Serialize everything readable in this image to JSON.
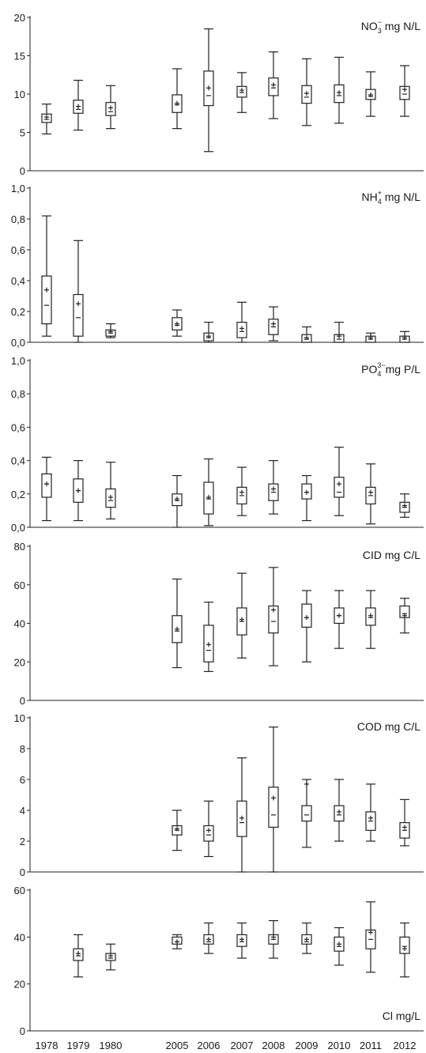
{
  "x_years": [
    "1978",
    "1979",
    "1980",
    "2005",
    "2006",
    "2007",
    "2008",
    "2009",
    "2010",
    "2011",
    "2012"
  ],
  "chart_data": [
    {
      "type": "box",
      "title_main": "NO",
      "title_sub": "3",
      "title_sup": "−",
      "title_rest": " mg N/L",
      "ylim": [
        0,
        20
      ],
      "yticks": [
        0,
        5,
        10,
        15,
        20
      ],
      "yticklabels": [
        "0",
        "5",
        "10",
        "15",
        "20"
      ],
      "boxes": [
        {
          "year": "1978",
          "min": 4.8,
          "q1": 6.3,
          "median": 6.7,
          "q3": 7.4,
          "max": 8.7,
          "mean": 7.0
        },
        {
          "year": "1979",
          "min": 5.3,
          "q1": 7.5,
          "median": 8.0,
          "q3": 9.2,
          "max": 11.8,
          "mean": 8.4
        },
        {
          "year": "1980",
          "min": 5.5,
          "q1": 7.2,
          "median": 7.7,
          "q3": 8.9,
          "max": 11.1,
          "mean": 8.2
        },
        {
          "year": "2005",
          "min": 5.5,
          "q1": 7.6,
          "median": 8.6,
          "q3": 9.9,
          "max": 13.3,
          "mean": 8.8
        },
        {
          "year": "2006",
          "min": 2.5,
          "q1": 8.5,
          "median": 9.8,
          "q3": 13.0,
          "max": 18.5,
          "mean": 10.8
        },
        {
          "year": "2007",
          "min": 7.6,
          "q1": 9.6,
          "median": 10.2,
          "q3": 11.0,
          "max": 12.8,
          "mean": 10.5
        },
        {
          "year": "2008",
          "min": 6.8,
          "q1": 9.8,
          "median": 10.8,
          "q3": 12.1,
          "max": 15.5,
          "mean": 11.2
        },
        {
          "year": "2009",
          "min": 5.9,
          "q1": 8.8,
          "median": 9.6,
          "q3": 11.1,
          "max": 14.6,
          "mean": 10.1
        },
        {
          "year": "2010",
          "min": 6.2,
          "q1": 8.9,
          "median": 9.8,
          "q3": 11.2,
          "max": 14.8,
          "mean": 10.2
        },
        {
          "year": "2011",
          "min": 7.1,
          "q1": 9.3,
          "median": 9.7,
          "q3": 10.6,
          "max": 12.9,
          "mean": 9.9
        },
        {
          "year": "2012",
          "min": 7.1,
          "q1": 9.3,
          "median": 10.0,
          "q3": 11.0,
          "max": 13.7,
          "mean": 10.6
        }
      ]
    },
    {
      "type": "box",
      "title_main": "NH",
      "title_sub": "4",
      "title_sup": "+",
      "title_rest": " mg N/L",
      "ylim": [
        0,
        1
      ],
      "yticks": [
        0,
        0.2,
        0.4,
        0.6,
        0.8,
        1.0
      ],
      "yticklabels": [
        "0,0",
        "0,2",
        "0,4",
        "0,6",
        "0,8",
        "1,0"
      ],
      "boxes": [
        {
          "year": "1978",
          "min": 0.04,
          "q1": 0.12,
          "median": 0.24,
          "q3": 0.43,
          "max": 0.82,
          "mean": 0.34
        },
        {
          "year": "1979",
          "min": 0.0,
          "q1": 0.04,
          "median": 0.16,
          "q3": 0.31,
          "max": 0.66,
          "mean": 0.25
        },
        {
          "year": "1980",
          "min": 0.03,
          "q1": 0.04,
          "median": 0.06,
          "q3": 0.08,
          "max": 0.12,
          "mean": 0.07
        },
        {
          "year": "2005",
          "min": 0.04,
          "q1": 0.08,
          "median": 0.11,
          "q3": 0.16,
          "max": 0.21,
          "mean": 0.12
        },
        {
          "year": "2006",
          "min": 0.0,
          "q1": 0.01,
          "median": 0.03,
          "q3": 0.06,
          "max": 0.13,
          "mean": 0.04
        },
        {
          "year": "2007",
          "min": 0.0,
          "q1": 0.03,
          "median": 0.07,
          "q3": 0.13,
          "max": 0.26,
          "mean": 0.09
        },
        {
          "year": "2008",
          "min": 0.01,
          "q1": 0.05,
          "median": 0.1,
          "q3": 0.15,
          "max": 0.23,
          "mean": 0.12
        },
        {
          "year": "2009",
          "min": 0.0,
          "q1": 0.0,
          "median": 0.02,
          "q3": 0.05,
          "max": 0.1,
          "mean": 0.03
        },
        {
          "year": "2010",
          "min": 0.0,
          "q1": 0.0,
          "median": 0.02,
          "q3": 0.05,
          "max": 0.13,
          "mean": 0.04
        },
        {
          "year": "2011",
          "min": 0.0,
          "q1": 0.0,
          "median": 0.02,
          "q3": 0.04,
          "max": 0.06,
          "mean": 0.03
        },
        {
          "year": "2012",
          "min": 0.0,
          "q1": 0.0,
          "median": 0.02,
          "q3": 0.04,
          "max": 0.07,
          "mean": 0.03
        }
      ]
    },
    {
      "type": "box",
      "title_main": "PO",
      "title_sub": "4",
      "title_sup": "3−",
      "title_rest": "mg P/L",
      "ylim": [
        0,
        1
      ],
      "yticks": [
        0,
        0.2,
        0.4,
        0.6,
        0.8,
        1.0
      ],
      "yticklabels": [
        "0,0",
        "0,2",
        "0,4",
        "0,6",
        "0,8",
        "1,0"
      ],
      "boxes": [
        {
          "year": "1978",
          "min": 0.04,
          "q1": 0.18,
          "median": 0.26,
          "q3": 0.32,
          "max": 0.42,
          "mean": 0.26
        },
        {
          "year": "1979",
          "min": 0.04,
          "q1": 0.15,
          "median": 0.22,
          "q3": 0.29,
          "max": 0.4,
          "mean": 0.22
        },
        {
          "year": "1980",
          "min": 0.05,
          "q1": 0.12,
          "median": 0.16,
          "q3": 0.23,
          "max": 0.39,
          "mean": 0.18
        },
        {
          "year": "2005",
          "min": 0.0,
          "q1": 0.13,
          "median": 0.16,
          "q3": 0.2,
          "max": 0.31,
          "mean": 0.17
        },
        {
          "year": "2006",
          "min": 0.01,
          "q1": 0.08,
          "median": 0.17,
          "q3": 0.27,
          "max": 0.41,
          "mean": 0.18
        },
        {
          "year": "2007",
          "min": 0.07,
          "q1": 0.14,
          "median": 0.19,
          "q3": 0.24,
          "max": 0.36,
          "mean": 0.21
        },
        {
          "year": "2008",
          "min": 0.08,
          "q1": 0.16,
          "median": 0.21,
          "q3": 0.26,
          "max": 0.4,
          "mean": 0.23
        },
        {
          "year": "2009",
          "min": 0.04,
          "q1": 0.17,
          "median": 0.21,
          "q3": 0.26,
          "max": 0.31,
          "mean": 0.21
        },
        {
          "year": "2010",
          "min": 0.07,
          "q1": 0.18,
          "median": 0.21,
          "q3": 0.3,
          "max": 0.48,
          "mean": 0.26
        },
        {
          "year": "2011",
          "min": 0.02,
          "q1": 0.14,
          "median": 0.19,
          "q3": 0.24,
          "max": 0.38,
          "mean": 0.21
        },
        {
          "year": "2012",
          "min": 0.06,
          "q1": 0.09,
          "median": 0.12,
          "q3": 0.15,
          "max": 0.2,
          "mean": 0.13
        }
      ]
    },
    {
      "type": "box",
      "title_main": "CID mg C/L",
      "title_sub": "",
      "title_sup": "",
      "title_rest": "",
      "ylim": [
        0,
        80
      ],
      "yticks": [
        0,
        20,
        40,
        60,
        80
      ],
      "yticklabels": [
        "0",
        "20",
        "40",
        "60",
        "80"
      ],
      "boxes": [
        {
          "year": "2005",
          "min": 17,
          "q1": 30,
          "median": 36,
          "q3": 44,
          "max": 63,
          "mean": 37
        },
        {
          "year": "2006",
          "min": 15,
          "q1": 20,
          "median": 26,
          "q3": 39,
          "max": 51,
          "mean": 29
        },
        {
          "year": "2007",
          "min": 22,
          "q1": 34,
          "median": 41,
          "q3": 48,
          "max": 66,
          "mean": 42
        },
        {
          "year": "2008",
          "min": 18,
          "q1": 35,
          "median": 41,
          "q3": 49,
          "max": 69,
          "mean": 47
        },
        {
          "year": "2009",
          "min": 20,
          "q1": 38,
          "median": 43,
          "q3": 50,
          "max": 57,
          "mean": 43
        },
        {
          "year": "2010",
          "min": 27,
          "q1": 40,
          "median": 44,
          "q3": 48,
          "max": 57,
          "mean": 44
        },
        {
          "year": "2011",
          "min": 27,
          "q1": 39,
          "median": 43,
          "q3": 48,
          "max": 57,
          "mean": 44
        },
        {
          "year": "2012",
          "min": 35,
          "q1": 43,
          "median": 45,
          "q3": 49,
          "max": 53,
          "mean": 44
        }
      ]
    },
    {
      "type": "box",
      "title_main": "COD mg C/L",
      "title_sub": "",
      "title_sup": "",
      "title_rest": "",
      "ylim": [
        0,
        10
      ],
      "yticks": [
        0,
        2,
        4,
        6,
        8,
        10
      ],
      "yticklabels": [
        "0",
        "2",
        "4",
        "6",
        "8",
        "10"
      ],
      "boxes": [
        {
          "year": "2005",
          "min": 1.4,
          "q1": 2.4,
          "median": 2.7,
          "q3": 3.0,
          "max": 4.0,
          "mean": 2.8
        },
        {
          "year": "2006",
          "min": 1.0,
          "q1": 2.0,
          "median": 2.4,
          "q3": 3.0,
          "max": 4.6,
          "mean": 2.7
        },
        {
          "year": "2007",
          "min": 0.0,
          "q1": 2.3,
          "median": 3.2,
          "q3": 4.6,
          "max": 7.4,
          "mean": 3.5
        },
        {
          "year": "2008",
          "min": 0.0,
          "q1": 2.9,
          "median": 3.7,
          "q3": 5.5,
          "max": 9.4,
          "mean": 4.8
        },
        {
          "year": "2009",
          "min": 1.6,
          "q1": 3.3,
          "median": 3.7,
          "q3": 4.3,
          "max": 6.0,
          "mean": 5.7
        },
        {
          "year": "2010",
          "min": 2.0,
          "q1": 3.3,
          "median": 3.7,
          "q3": 4.3,
          "max": 6.0,
          "mean": 3.9
        },
        {
          "year": "2011",
          "min": 2.0,
          "q1": 2.7,
          "median": 3.3,
          "q3": 3.9,
          "max": 5.7,
          "mean": 3.5
        },
        {
          "year": "2012",
          "min": 1.7,
          "q1": 2.2,
          "median": 2.7,
          "q3": 3.2,
          "max": 4.7,
          "mean": 2.9
        }
      ]
    },
    {
      "type": "box",
      "title_main": "Cl mg/L",
      "title_sub": "",
      "title_sup": "",
      "title_rest": "",
      "title_bottom": true,
      "ylim": [
        0,
        60
      ],
      "yticks": [
        0,
        20,
        40,
        60
      ],
      "yticklabels": [
        "0",
        "20",
        "40",
        "60"
      ],
      "boxes": [
        {
          "year": "1979",
          "min": 23,
          "q1": 30,
          "median": 32,
          "q3": 35,
          "max": 41,
          "mean": 33
        },
        {
          "year": "1980",
          "min": 26,
          "q1": 30,
          "median": 31,
          "q3": 33,
          "max": 37,
          "mean": 32
        },
        {
          "year": "2005",
          "min": 35,
          "q1": 37,
          "median": 38,
          "q3": 40,
          "max": 41,
          "mean": 38
        },
        {
          "year": "2006",
          "min": 33,
          "q1": 37,
          "median": 38,
          "q3": 41,
          "max": 46,
          "mean": 39
        },
        {
          "year": "2007",
          "min": 31,
          "q1": 36,
          "median": 38,
          "q3": 41,
          "max": 46,
          "mean": 39
        },
        {
          "year": "2008",
          "min": 31,
          "q1": 37,
          "median": 39,
          "q3": 41,
          "max": 47,
          "mean": 40
        },
        {
          "year": "2009",
          "min": 33,
          "q1": 37,
          "median": 38,
          "q3": 41,
          "max": 46,
          "mean": 39
        },
        {
          "year": "2010",
          "min": 28,
          "q1": 34,
          "median": 36,
          "q3": 40,
          "max": 44,
          "mean": 37
        },
        {
          "year": "2011",
          "min": 25,
          "q1": 35,
          "median": 39,
          "q3": 43,
          "max": 55,
          "mean": 42
        },
        {
          "year": "2012",
          "min": 23,
          "q1": 33,
          "median": 36,
          "q3": 40,
          "max": 46,
          "mean": 35
        }
      ]
    }
  ]
}
